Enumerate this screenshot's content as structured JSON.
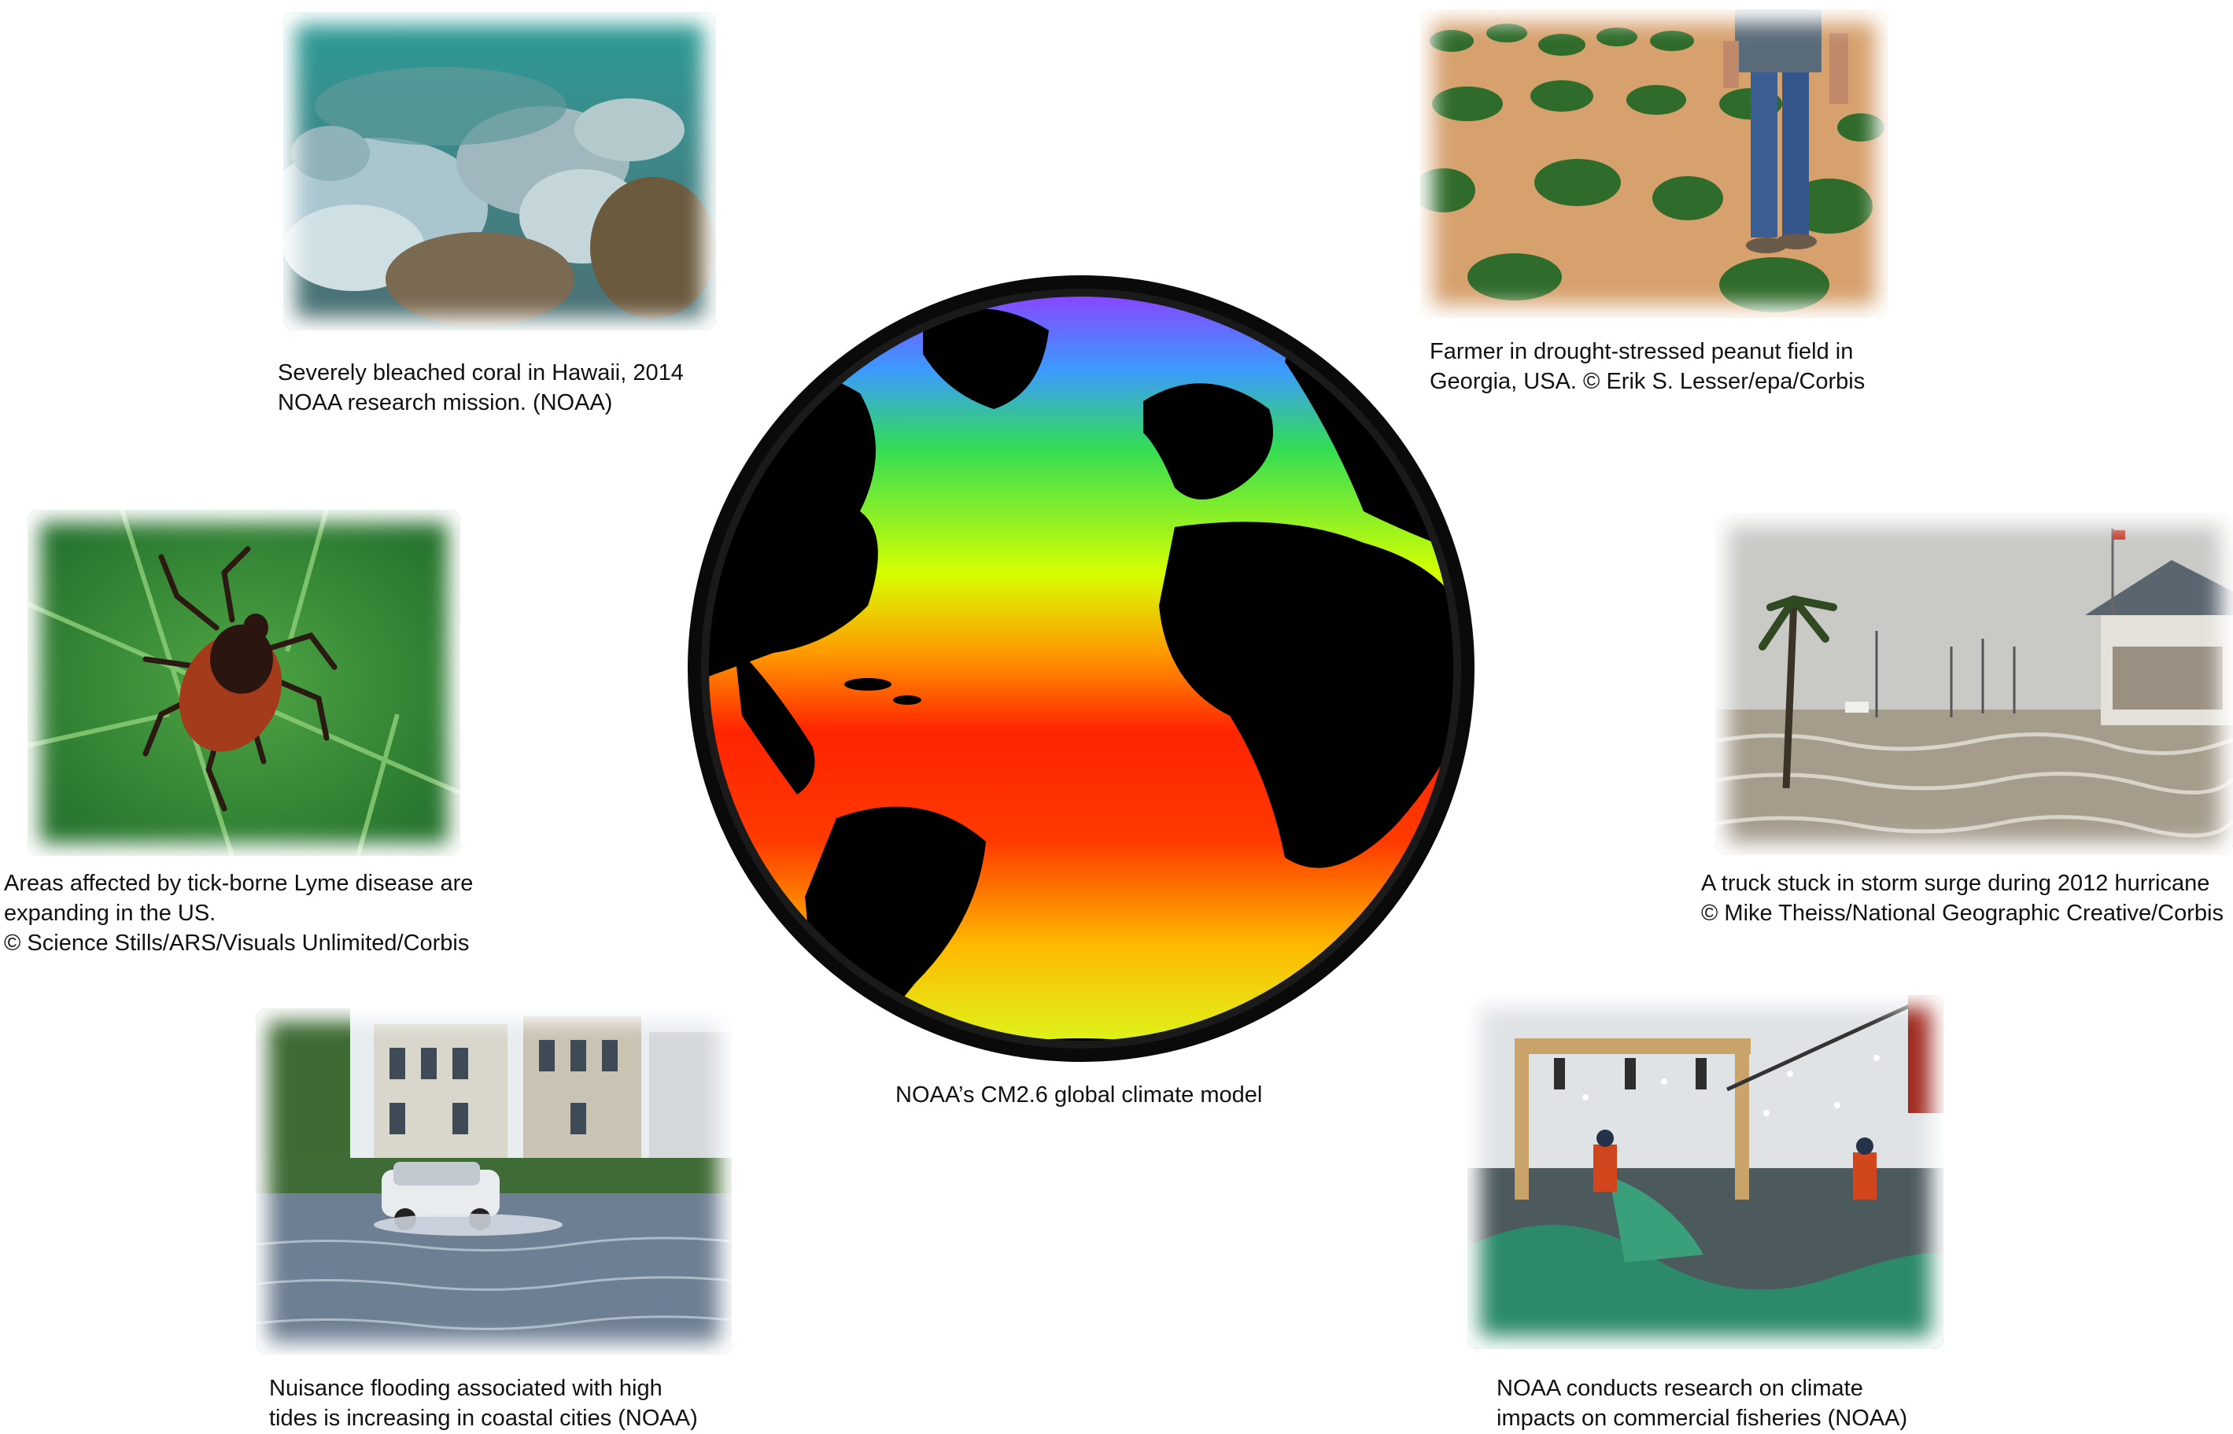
{
  "figure": {
    "center": {
      "caption": "NOAA’s CM2.6 global climate model",
      "icon": "globe-sea-temperature-icon"
    },
    "panels": [
      {
        "id": "coral",
        "caption": "Severely bleached coral in Hawaii, 2014\nNOAA research mission. (NOAA)",
        "icon": "bleached-coral-photo"
      },
      {
        "id": "peanut",
        "caption": "Farmer in drought-stressed peanut field in\nGeorgia, USA.  © Erik S. Lesser/epa/Corbis",
        "icon": "drought-field-photo"
      },
      {
        "id": "tick",
        "caption": "Areas affected by tick-borne Lyme disease are\nexpanding in the US.\n© Science Stills/ARS/Visuals Unlimited/Corbis",
        "icon": "tick-on-leaf-photo"
      },
      {
        "id": "storm",
        "caption": "A truck stuck in  storm surge  during 2012 hurricane\n© Mike Theiss/National Geographic Creative/Corbis",
        "icon": "storm-surge-photo"
      },
      {
        "id": "flood",
        "caption": "Nuisance flooding associated with high\ntides is increasing in coastal cities (NOAA)",
        "icon": "coastal-flooding-photo"
      },
      {
        "id": "fish",
        "caption": "NOAA conducts research on climate\nimpacts on commercial fisheries (NOAA)",
        "icon": "fishing-vessel-photo"
      }
    ]
  }
}
